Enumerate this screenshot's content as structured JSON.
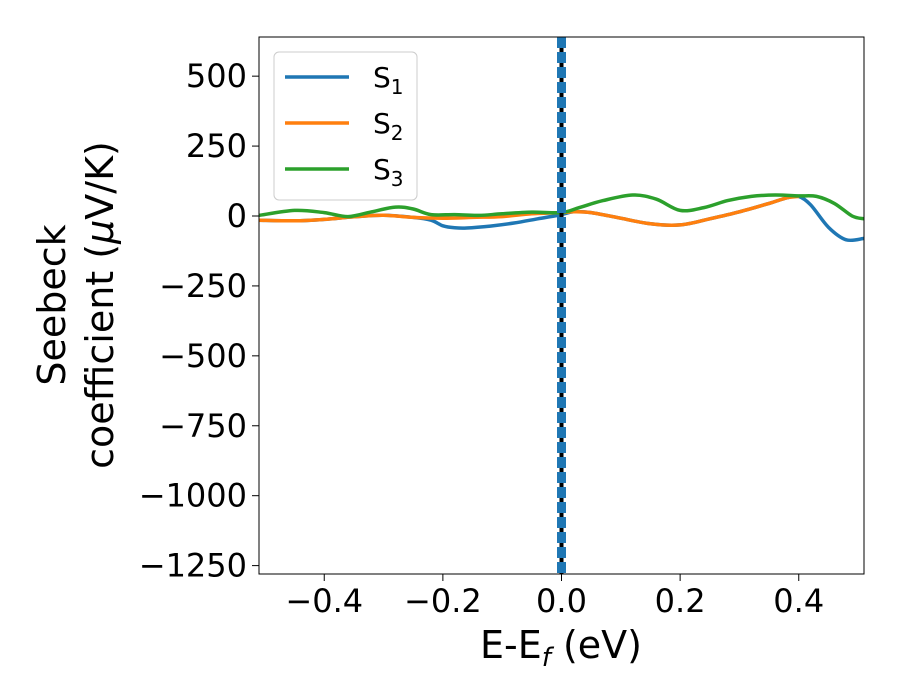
{
  "chart_data": {
    "type": "line",
    "xlabel": "E-E",
    "xlabel_sub": "f",
    "xlabel_unit": " (eV)",
    "ylabel_line1": "Seebeck",
    "ylabel_line2": "coefficient  (",
    "ylabel_mu": "μ",
    "ylabel_unit": "V/K)",
    "xlim": [
      -0.51,
      0.51
    ],
    "ylim": [
      -1280,
      640
    ],
    "xticks": [
      -0.4,
      -0.2,
      0.0,
      0.2,
      0.4
    ],
    "xtick_labels": [
      "−0.4",
      "−0.2",
      "0.0",
      "0.2",
      "0.4"
    ],
    "yticks": [
      500,
      250,
      0,
      -250,
      -500,
      -750,
      -1000,
      -1250
    ],
    "ytick_labels": [
      "500",
      "250",
      "0",
      "−250",
      "−500",
      "−750",
      "−1000",
      "−1250"
    ],
    "grid": false,
    "legend_position": "top-left",
    "vline_x": 0.0,
    "vline_colors": [
      "#000000",
      "#1f77b4"
    ],
    "series": [
      {
        "name": "S",
        "sub": "1",
        "color": "#1f77b4",
        "x": [
          -0.51,
          -0.45,
          -0.4,
          -0.35,
          -0.3,
          -0.25,
          -0.22,
          -0.2,
          -0.18,
          -0.16,
          -0.12,
          -0.08,
          -0.04,
          0.0,
          0.02,
          0.05,
          0.1,
          0.15,
          0.2,
          0.25,
          0.3,
          0.35,
          0.38,
          0.4,
          0.42,
          0.45,
          0.48,
          0.51
        ],
        "y": [
          -15,
          -17,
          -12,
          -3,
          3,
          -5,
          -15,
          -35,
          -42,
          -43,
          -36,
          -25,
          -10,
          5,
          15,
          12,
          -8,
          -28,
          -32,
          -10,
          15,
          45,
          65,
          70,
          40,
          -40,
          -85,
          -80
        ]
      },
      {
        "name": "S",
        "sub": "2",
        "color": "#ff7f0e",
        "x": [
          -0.51,
          -0.45,
          -0.4,
          -0.35,
          -0.3,
          -0.25,
          -0.2,
          -0.15,
          -0.1,
          -0.05,
          0.0,
          0.02,
          0.05,
          0.1,
          0.15,
          0.2,
          0.25,
          0.3,
          0.35,
          0.38,
          0.4
        ],
        "y": [
          -15,
          -17,
          -12,
          -3,
          3,
          -5,
          -8,
          -5,
          -2,
          8,
          12,
          15,
          12,
          -8,
          -28,
          -32,
          -10,
          15,
          45,
          65,
          70
        ]
      },
      {
        "name": "S",
        "sub": "3",
        "color": "#2ca02c",
        "x": [
          -0.51,
          -0.45,
          -0.4,
          -0.36,
          -0.32,
          -0.28,
          -0.25,
          -0.22,
          -0.18,
          -0.14,
          -0.1,
          -0.05,
          0.0,
          0.03,
          0.07,
          0.12,
          0.16,
          0.2,
          0.24,
          0.28,
          0.32,
          0.36,
          0.4,
          0.43,
          0.46,
          0.49,
          0.51
        ],
        "y": [
          2,
          20,
          12,
          -2,
          15,
          32,
          25,
          5,
          5,
          2,
          8,
          14,
          12,
          30,
          55,
          75,
          60,
          20,
          30,
          55,
          70,
          75,
          72,
          70,
          45,
          0,
          -10
        ]
      }
    ]
  }
}
